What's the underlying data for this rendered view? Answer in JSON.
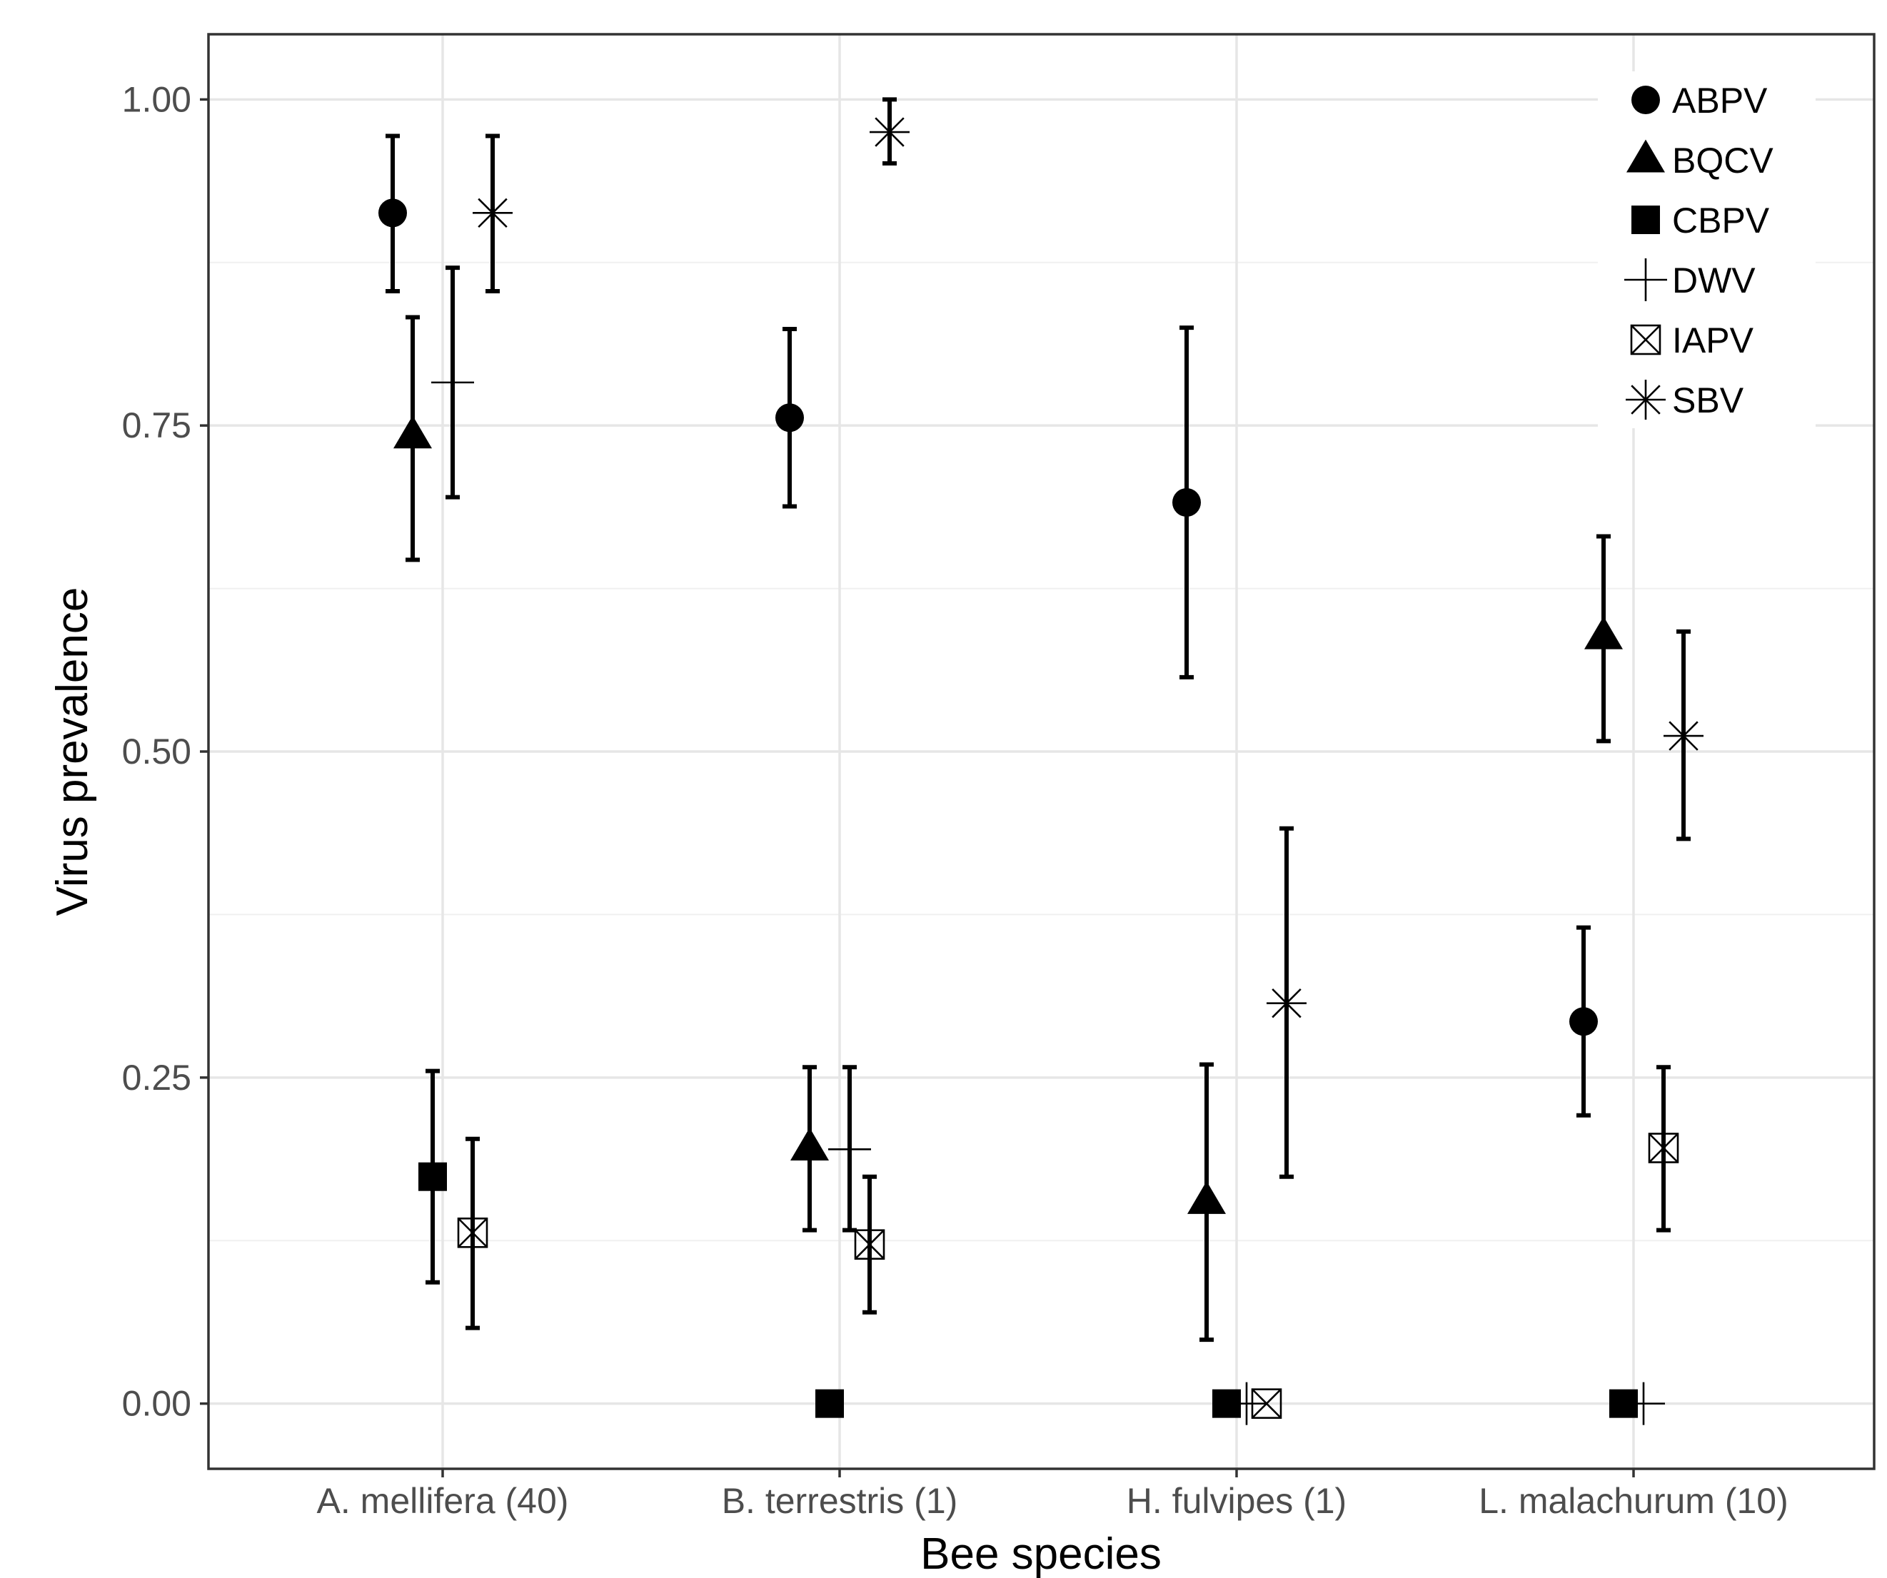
{
  "chart_data": {
    "type": "scatter",
    "title": "",
    "xlabel": "Bee species",
    "ylabel": "Virus prevalence",
    "ylim": [
      -0.05,
      1.05
    ],
    "y_ticks": [
      "0.00",
      "0.25",
      "0.50",
      "0.75",
      "1.00"
    ],
    "y_tick_values": [
      0,
      0.25,
      0.5,
      0.75,
      1.0
    ],
    "categories": [
      "A. mellifera (40)",
      "B. terrestris (1)",
      "H. fulvipes (1)",
      "L. malachurum (10)"
    ],
    "legend": {
      "position": "top-right",
      "entries": [
        {
          "name": "ABPV",
          "shape": "circle"
        },
        {
          "name": "BQCV",
          "shape": "triangle"
        },
        {
          "name": "CBPV",
          "shape": "square"
        },
        {
          "name": "DWV",
          "shape": "plus"
        },
        {
          "name": "IAPV",
          "shape": "boxed-x"
        },
        {
          "name": "SBV",
          "shape": "asterisk"
        }
      ]
    },
    "series": [
      {
        "name": "ABPV",
        "shape": "circle",
        "values": [
          0.913,
          0.756,
          0.691,
          0.293
        ],
        "lower": [
          0.853,
          0.688,
          0.557,
          0.221
        ],
        "upper": [
          0.972,
          0.824,
          0.825,
          0.365
        ]
      },
      {
        "name": "BQCV",
        "shape": "triangle",
        "values": [
          0.742,
          0.196,
          0.155,
          0.588
        ],
        "lower": [
          0.647,
          0.133,
          0.049,
          0.508
        ],
        "upper": [
          0.833,
          0.258,
          0.26,
          0.665
        ]
      },
      {
        "name": "CBPV",
        "shape": "square",
        "values": [
          0.174,
          0.0,
          0.0,
          0.0
        ],
        "lower": [
          0.093,
          null,
          null,
          null
        ],
        "upper": [
          0.255,
          null,
          null,
          null
        ]
      },
      {
        "name": "DWV",
        "shape": "plus",
        "values": [
          0.783,
          0.195,
          0.0,
          0.0
        ],
        "lower": [
          0.695,
          0.133,
          null,
          null
        ],
        "upper": [
          0.871,
          0.258,
          null,
          null
        ]
      },
      {
        "name": "IAPV",
        "shape": "boxed-x",
        "values": [
          0.131,
          0.122,
          0.0,
          0.196
        ],
        "lower": [
          0.058,
          0.07,
          null,
          0.133
        ],
        "upper": [
          0.203,
          0.174,
          null,
          0.258
        ]
      },
      {
        "name": "SBV",
        "shape": "asterisk",
        "values": [
          0.913,
          0.975,
          0.307,
          0.512
        ],
        "lower": [
          0.853,
          0.951,
          0.174,
          0.433
        ],
        "upper": [
          0.972,
          1.0,
          0.441,
          0.592
        ]
      }
    ]
  }
}
